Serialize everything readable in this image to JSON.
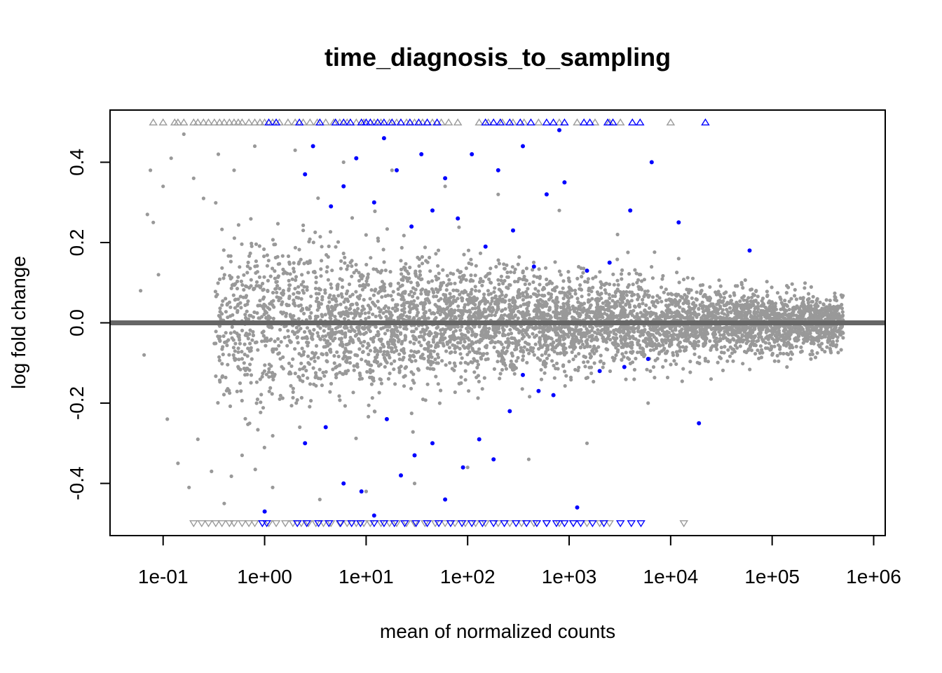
{
  "chart_data": {
    "type": "scatter",
    "title": "time_diagnosis_to_sampling",
    "xlabel": "mean of normalized counts",
    "ylabel": "log fold change",
    "x_scale": "log10",
    "xlim": [
      0.03,
      1300000
    ],
    "ylim": [
      -0.53,
      0.53
    ],
    "x_ticks": [
      {
        "value": 0.1,
        "label": "1e-01"
      },
      {
        "value": 1,
        "label": "1e+00"
      },
      {
        "value": 10,
        "label": "1e+01"
      },
      {
        "value": 100,
        "label": "1e+02"
      },
      {
        "value": 1000,
        "label": "1e+03"
      },
      {
        "value": 10000,
        "label": "1e+04"
      },
      {
        "value": 100000,
        "label": "1e+05"
      },
      {
        "value": 1000000,
        "label": "1e+06"
      }
    ],
    "y_ticks": [
      {
        "value": -0.4,
        "label": "-0.4"
      },
      {
        "value": -0.2,
        "label": "-0.2"
      },
      {
        "value": 0.0,
        "label": "0.0"
      },
      {
        "value": 0.2,
        "label": "0.2"
      },
      {
        "value": 0.4,
        "label": "0.4"
      }
    ],
    "reference_line": {
      "y": 0,
      "color": "#666666"
    },
    "clip_value": 0.5,
    "colors": {
      "nonsignificant": "#999999",
      "significant": "#0000ff",
      "axis": "#000000"
    },
    "series": [
      {
        "values": [
          [
            0.06,
            0.08
          ],
          [
            0.065,
            -0.08
          ],
          [
            0.07,
            0.27
          ],
          [
            0.075,
            0.38
          ],
          [
            0.08,
            0.25
          ],
          [
            0.09,
            0.12
          ],
          [
            0.1,
            0.34
          ],
          [
            0.11,
            -0.24
          ],
          [
            0.12,
            0.41
          ],
          [
            0.14,
            -0.35
          ],
          [
            0.16,
            0.47
          ],
          [
            0.18,
            -0.41
          ],
          [
            0.2,
            0.36
          ],
          [
            0.22,
            -0.29
          ],
          [
            0.25,
            0.31
          ],
          [
            0.3,
            -0.37
          ],
          [
            0.35,
            0.42
          ],
          [
            0.4,
            -0.45
          ],
          [
            0.5,
            0.38
          ],
          [
            0.6,
            -0.33
          ],
          [
            0.8,
            0.44
          ],
          [
            1.2,
            -0.41
          ],
          [
            2.0,
            0.43
          ],
          [
            3.5,
            -0.44
          ],
          [
            6.0,
            0.4
          ],
          [
            10,
            -0.42
          ],
          [
            18,
            0.38
          ],
          [
            30,
            -0.4
          ],
          [
            60,
            0.34
          ],
          [
            100,
            -0.36
          ],
          [
            200,
            0.32
          ],
          [
            400,
            -0.34
          ],
          [
            800,
            0.28
          ],
          [
            1500,
            -0.3
          ],
          [
            3000,
            0.22
          ],
          [
            6000,
            -0.2
          ],
          [
            12000,
            0.16
          ],
          [
            25000,
            -0.14
          ],
          [
            50000,
            0.1
          ],
          [
            100000,
            -0.08
          ],
          [
            200000,
            0.05
          ],
          [
            400000,
            0.02
          ],
          [
            800000,
            0.0
          ]
        ]
      },
      {
        "values": [
          [
            2.5,
            0.37
          ],
          [
            3.0,
            0.44
          ],
          [
            4.5,
            0.29
          ],
          [
            6.0,
            0.34
          ],
          [
            8.0,
            0.41
          ],
          [
            12,
            0.3
          ],
          [
            15,
            0.46
          ],
          [
            20,
            0.38
          ],
          [
            28,
            0.24
          ],
          [
            35,
            0.42
          ],
          [
            45,
            0.28
          ],
          [
            60,
            0.36
          ],
          [
            80,
            0.26
          ],
          [
            110,
            0.42
          ],
          [
            150,
            0.19
          ],
          [
            200,
            0.38
          ],
          [
            280,
            0.23
          ],
          [
            350,
            0.44
          ],
          [
            450,
            0.14
          ],
          [
            600,
            0.32
          ],
          [
            800,
            0.48
          ],
          [
            900,
            0.35
          ],
          [
            1500,
            0.13
          ],
          [
            2500,
            0.15
          ],
          [
            4000,
            0.28
          ],
          [
            6500,
            0.4
          ],
          [
            12000,
            0.25
          ],
          [
            60000,
            0.18
          ],
          [
            1.0,
            -0.47
          ],
          [
            2.5,
            -0.3
          ],
          [
            4.0,
            -0.26
          ],
          [
            6.0,
            -0.4
          ],
          [
            9.0,
            -0.42
          ],
          [
            12,
            -0.48
          ],
          [
            16,
            -0.24
          ],
          [
            22,
            -0.38
          ],
          [
            30,
            -0.33
          ],
          [
            45,
            -0.3
          ],
          [
            60,
            -0.44
          ],
          [
            90,
            -0.36
          ],
          [
            130,
            -0.29
          ],
          [
            180,
            -0.34
          ],
          [
            260,
            -0.22
          ],
          [
            350,
            -0.13
          ],
          [
            500,
            -0.17
          ],
          [
            700,
            -0.18
          ],
          [
            1200,
            -0.46
          ],
          [
            2000,
            -0.12
          ],
          [
            3500,
            -0.11
          ],
          [
            6000,
            -0.09
          ],
          [
            19000,
            -0.25
          ]
        ]
      }
    ],
    "clipped_up_x": [
      0.08,
      0.1,
      0.13,
      0.14,
      0.16,
      0.2,
      0.22,
      0.25,
      0.28,
      0.32,
      0.36,
      0.4,
      0.45,
      0.5,
      0.55,
      0.6,
      0.7,
      0.8,
      0.9,
      1.0,
      1.2,
      1.4,
      1.7,
      2.0,
      2.4,
      2.8,
      3.3,
      4.0,
      4.8,
      5.5,
      6.5,
      8.0,
      9.5,
      12,
      14,
      17,
      20,
      25,
      30,
      36,
      45,
      55,
      65,
      80,
      130,
      160,
      220,
      280,
      360,
      500,
      800,
      1200,
      1800,
      2500,
      3200,
      10000
    ],
    "clipped_up_sig_x": [
      1.1,
      1.3,
      2.2,
      3.5,
      5.0,
      6.0,
      7.0,
      9.0,
      10,
      11,
      13,
      15,
      18,
      22,
      27,
      33,
      40,
      50,
      150,
      180,
      210,
      260,
      330,
      420,
      600,
      700,
      900,
      1400,
      1600,
      2400,
      2700,
      4200,
      5000,
      22000
    ],
    "clipped_down_x": [
      0.2,
      0.24,
      0.28,
      0.33,
      0.38,
      0.45,
      0.5,
      0.6,
      0.7,
      0.8,
      0.95,
      1.1,
      1.3,
      1.6,
      1.9,
      2.3,
      2.7,
      3.2,
      3.8,
      4.5,
      5.5,
      6.5,
      8.0,
      9.5,
      11,
      14,
      17,
      20,
      25,
      30,
      38,
      48,
      60,
      75,
      95,
      120,
      150,
      200,
      260,
      340,
      450,
      600,
      800,
      1100,
      1500,
      2000,
      2500,
      13500
    ],
    "clipped_down_sig_x": [
      0.95,
      1.05,
      2.1,
      2.6,
      3.4,
      4.3,
      5.6,
      7.2,
      8.8,
      12,
      15,
      19,
      24,
      31,
      40,
      52,
      68,
      88,
      110,
      140,
      180,
      230,
      300,
      380,
      480,
      600,
      750,
      900,
      1100,
      1300,
      1700,
      2200,
      3200,
      4100,
      5100
    ]
  }
}
